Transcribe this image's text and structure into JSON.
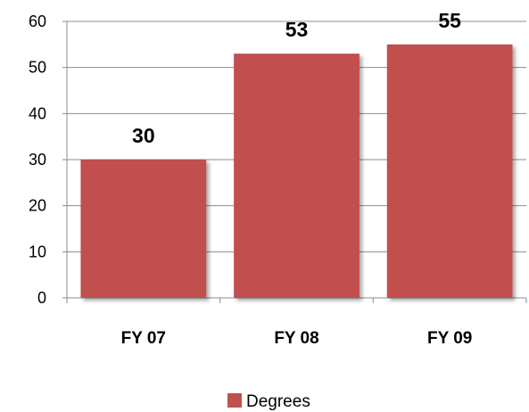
{
  "chart_data": {
    "type": "bar",
    "categories": [
      "FY 07",
      "FY 08",
      "FY 09"
    ],
    "series": [
      {
        "name": "Degrees",
        "values": [
          30,
          53,
          55
        ],
        "color": "#c0504d"
      }
    ],
    "data_labels": [
      "30",
      "53",
      "55"
    ],
    "ylim": [
      0,
      60
    ],
    "y_ticks": [
      0,
      10,
      20,
      30,
      40,
      50,
      60
    ],
    "grid": true,
    "legend_position": "bottom"
  }
}
